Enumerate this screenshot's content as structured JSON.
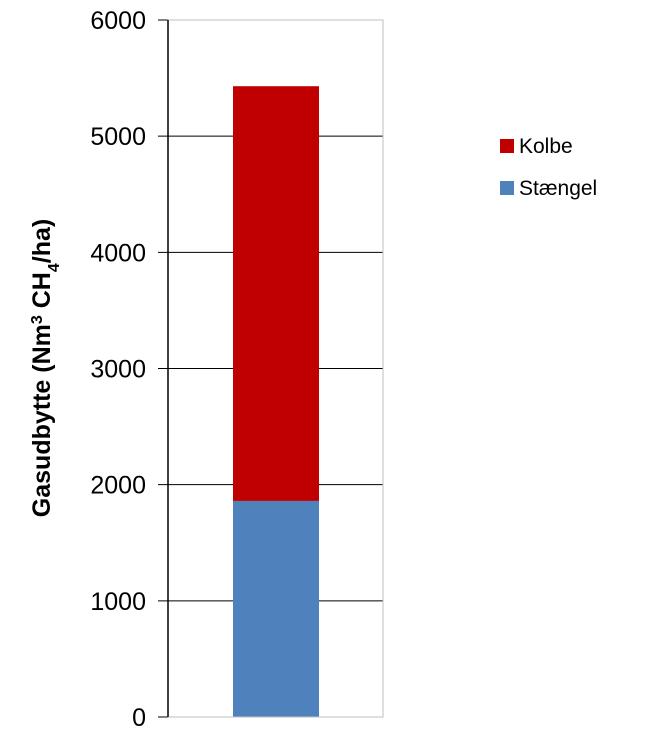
{
  "chart_data": {
    "type": "bar",
    "stacked": true,
    "categories": [
      ""
    ],
    "series": [
      {
        "name": "Stængel",
        "values": [
          1860
        ],
        "color": "#4f81bd"
      },
      {
        "name": "Kolbe",
        "values": [
          3570
        ],
        "color": "#c00000"
      }
    ],
    "ylabel": {
      "main": "Gasudbytte (Nm",
      "sup": "3",
      "mid": " CH",
      "sub": "4",
      "end": "/ha)"
    },
    "ylim": [
      0,
      6000
    ],
    "yticks": [
      "0",
      "1000",
      "2000",
      "3000",
      "4000",
      "5000",
      "6000"
    ],
    "grid": true,
    "legend": {
      "position": "right",
      "order": [
        "Kolbe",
        "Stængel"
      ]
    }
  }
}
